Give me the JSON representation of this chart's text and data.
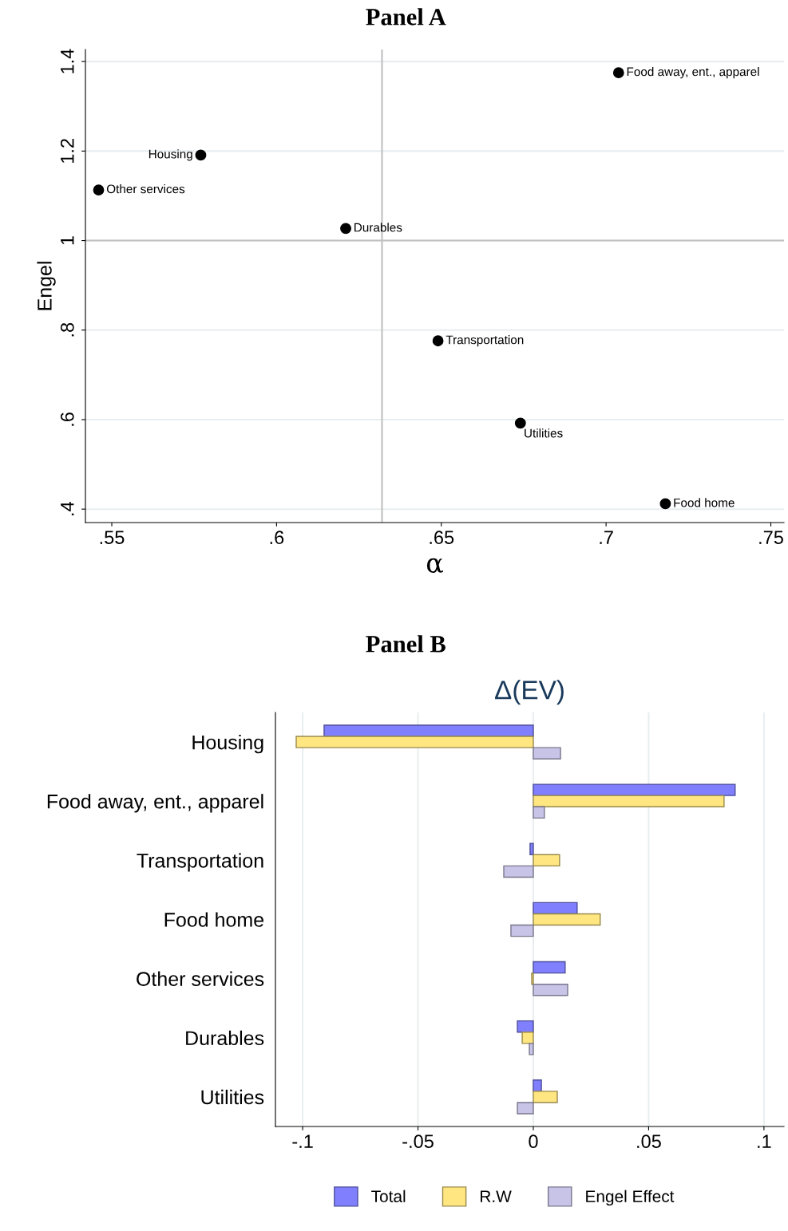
{
  "chart_data": [
    {
      "type": "scatter",
      "title": "Panel A",
      "xlabel": "α",
      "ylabel": "Engel",
      "x": [
        0.7038,
        0.577,
        0.546,
        0.621,
        0.649,
        0.674,
        0.718
      ],
      "values": [
        1.375,
        1.191,
        1.113,
        1.027,
        0.776,
        0.592,
        0.412
      ],
      "color": "#000000",
      "marker": "circle",
      "annotations": [
        {
          "text": "Food away, ent., apparel",
          "x": 0.7038,
          "y": 1.375
        },
        {
          "text": "Housing",
          "x": 0.577,
          "y": 1.191
        },
        {
          "text": "Other services",
          "x": 0.546,
          "y": 1.113
        },
        {
          "text": "Durables",
          "x": 0.621,
          "y": 1.027
        },
        {
          "text": "Transportation",
          "x": 0.649,
          "y": 0.776
        },
        {
          "text": "Utilities",
          "x": 0.674,
          "y": 0.592
        },
        {
          "text": "Food home",
          "x": 0.718,
          "y": 0.412
        }
      ],
      "xlim": [
        0.542,
        0.754
      ],
      "ylim": [
        0.37,
        1.427
      ],
      "xticks": [
        {
          "value": 0.55,
          "label": ".55"
        },
        {
          "value": 0.6,
          "label": ".6"
        },
        {
          "value": 0.65,
          "label": ".65"
        },
        {
          "value": 0.7,
          "label": ".7"
        },
        {
          "value": 0.75,
          "label": ".75"
        }
      ],
      "yticks": [
        {
          "value": 0.4,
          "label": ".4"
        },
        {
          "value": 0.6,
          "label": ".6"
        },
        {
          "value": 0.8,
          "label": ".8"
        },
        1,
        {
          "value": 1.2,
          "label": "1.2"
        },
        {
          "value": 1.4,
          "label": "1.4"
        }
      ],
      "grid": "y",
      "ref_lines": [
        {
          "axis": "x",
          "value": 0.632,
          "color": "#c0c0c0"
        },
        {
          "axis": "y",
          "value": 1,
          "color": "#c0c0c0"
        }
      ]
    },
    {
      "type": "bar",
      "orientation": "horizontal",
      "title": "Panel B",
      "subtitle": "Δ(EV)",
      "categories": [
        "Housing",
        "Food away, ent., apparel",
        "Transportation",
        "Food home",
        "Other services",
        "Durables",
        "Utilities"
      ],
      "series": [
        {
          "name": "Total",
          "color": "#8080ff",
          "values": [
            -0.0907,
            0.0875,
            -0.0014,
            0.019,
            0.0138,
            -0.0069,
            0.0035
          ]
        },
        {
          "name": "R.W",
          "color": "#ffe680",
          "values": [
            -0.1028,
            0.0827,
            0.0114,
            0.029,
            -0.0007,
            -0.0048,
            0.0104
          ]
        },
        {
          "name": "Engel Effect",
          "color": "#c8c4e8",
          "values": [
            0.0118,
            0.0048,
            -0.0128,
            -0.0097,
            0.0149,
            -0.0017,
            -0.0069
          ]
        }
      ],
      "xlim": [
        -0.1118,
        0.1087
      ],
      "xticks": [
        {
          "value": -0.1,
          "label": "-.1"
        },
        {
          "value": -0.05,
          "label": "-.05"
        },
        0,
        {
          "value": 0.05,
          "label": ".05"
        },
        {
          "value": 0.1,
          "label": ".1"
        }
      ],
      "grid": "x",
      "legend": "bottom"
    }
  ]
}
